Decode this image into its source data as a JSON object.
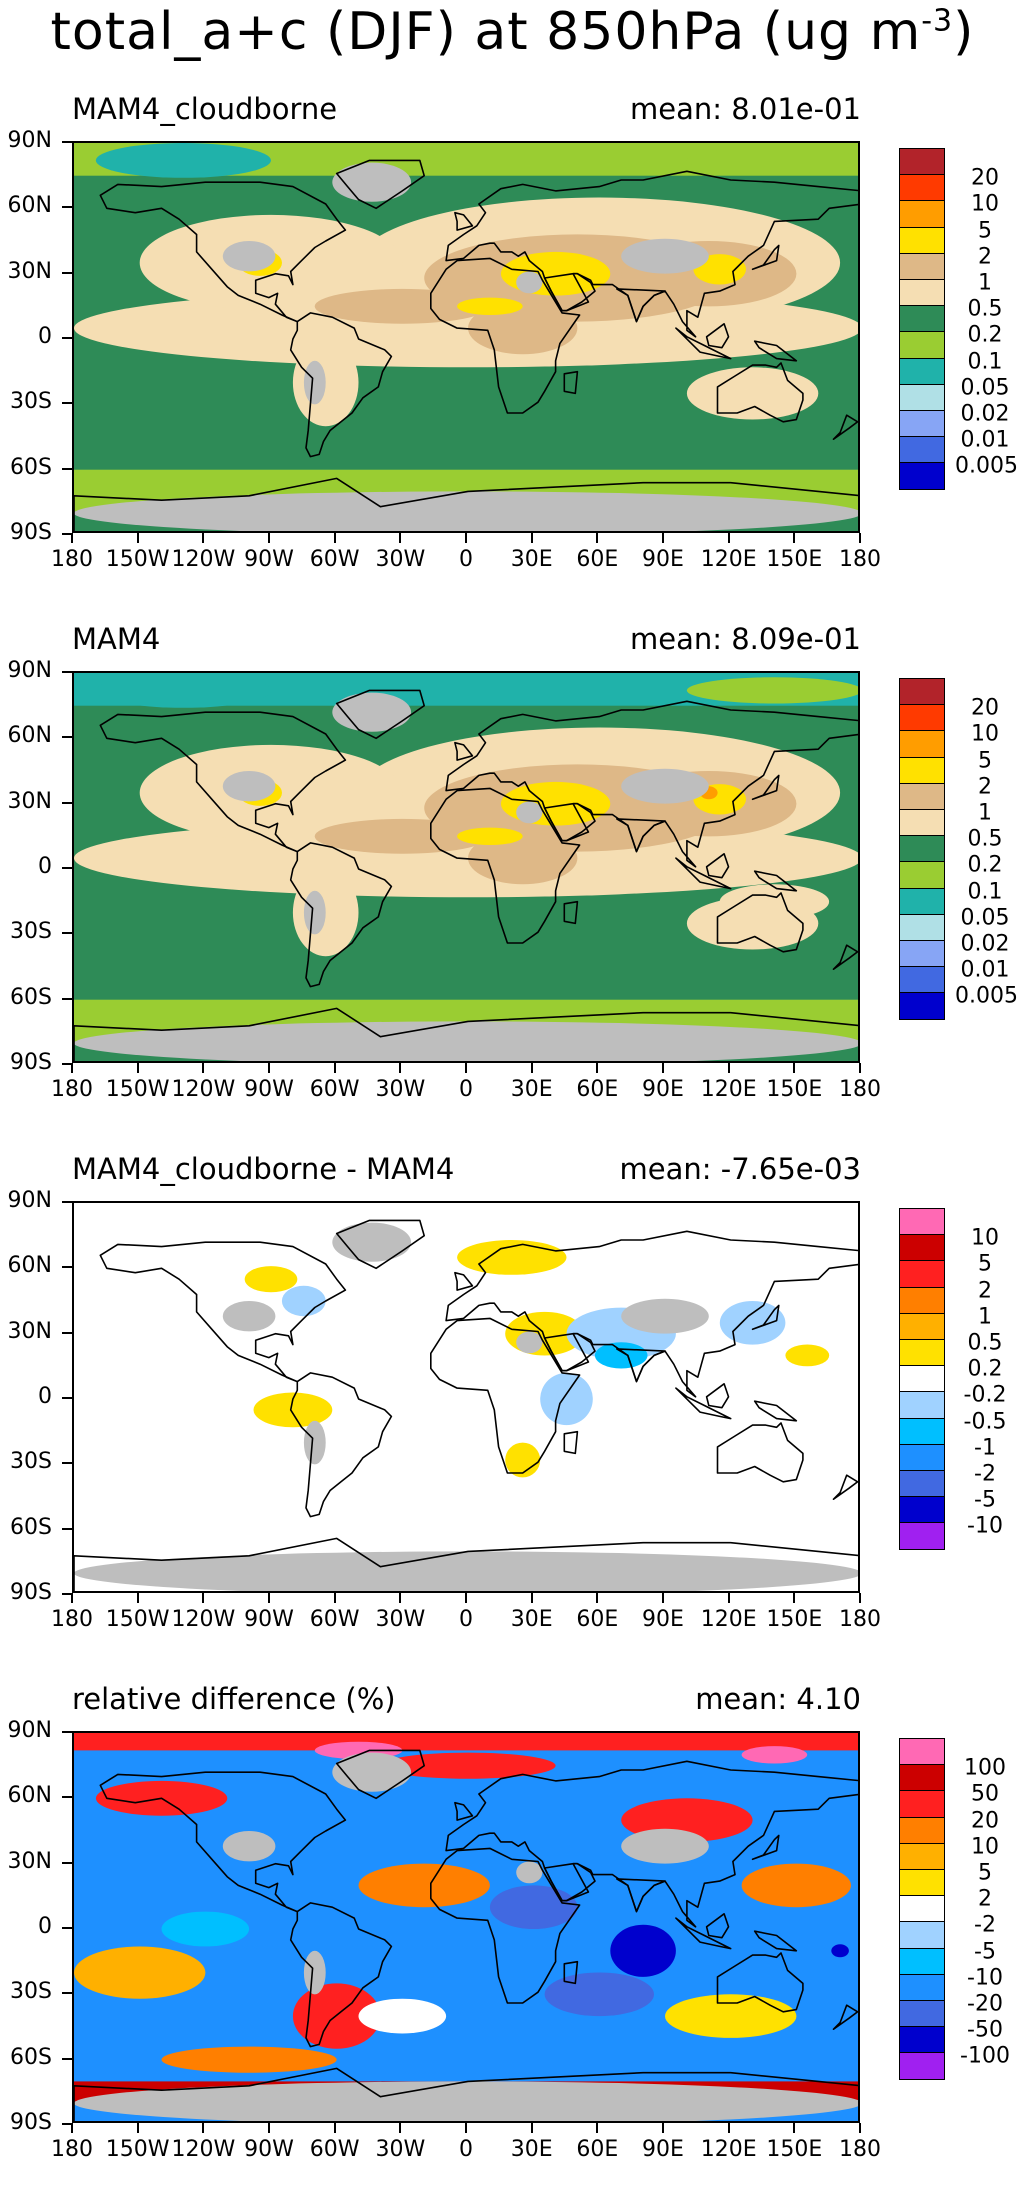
{
  "title": "total_a+c (DJF) at 850hPa (ug m",
  "title_units_exponent": "-3",
  "title_units_close": ")",
  "lat_labels": [
    "90N",
    "60N",
    "30N",
    "0",
    "30S",
    "60S",
    "90S"
  ],
  "lon_labels": [
    "180",
    "150W",
    "120W",
    "90W",
    "60W",
    "30W",
    "0",
    "30E",
    "60E",
    "90E",
    "120E",
    "150E",
    "180"
  ],
  "colors": {
    "darkred": "#b2232a",
    "red": "#ff3a00",
    "orange": "#ff9d00",
    "yellow": "#ffe100",
    "tan": "#deb887",
    "cream": "#f5deb3",
    "darkgreen": "#2e8b57",
    "lightgreen": "#9acd32",
    "teal": "#20b2aa",
    "lightcyan": "#b0e0e6",
    "periwinkle": "#87a5f5",
    "royalblue": "#4169e1",
    "blue": "#0000cd",
    "pink": "#ff69b4",
    "purple": "#a020f0",
    "gray": "#bebebe",
    "skyblue": "#00bfff"
  },
  "panels": [
    {
      "label": "MAM4_cloudborne",
      "mean": "mean: 8.01e-01",
      "colorbar_ticks": [
        "20",
        "10",
        "5",
        "2",
        "1",
        "0.5",
        "0.2",
        "0.1",
        "0.05",
        "0.02",
        "0.01",
        "0.005"
      ],
      "colorbar_colors": [
        "#b2232a",
        "#ff3a00",
        "#ff9d00",
        "#ffe100",
        "#deb887",
        "#f5deb3",
        "#2e8b57",
        "#9acd32",
        "#20b2aa",
        "#b0e0e6",
        "#87a5f5",
        "#4169e1",
        "#0000cd"
      ]
    },
    {
      "label": "MAM4",
      "mean": "mean: 8.09e-01",
      "colorbar_ticks": [
        "20",
        "10",
        "5",
        "2",
        "1",
        "0.5",
        "0.2",
        "0.1",
        "0.05",
        "0.02",
        "0.01",
        "0.005"
      ],
      "colorbar_colors": [
        "#b2232a",
        "#ff3a00",
        "#ff9d00",
        "#ffe100",
        "#deb887",
        "#f5deb3",
        "#2e8b57",
        "#9acd32",
        "#20b2aa",
        "#b0e0e6",
        "#87a5f5",
        "#4169e1",
        "#0000cd"
      ]
    },
    {
      "label": "MAM4_cloudborne - MAM4",
      "mean": "mean: -7.65e-03",
      "colorbar_ticks": [
        "10",
        "5",
        "2",
        "1",
        "0.5",
        "0.2",
        "-0.2",
        "-0.5",
        "-1",
        "-2",
        "-5",
        "-10"
      ],
      "colorbar_colors": [
        "#ff69b4",
        "#cc0000",
        "#ff2020",
        "#ff7f00",
        "#ffb000",
        "#ffe100",
        "#ffffff",
        "#a0d2ff",
        "#00bfff",
        "#1e90ff",
        "#4169e1",
        "#0000cd",
        "#a020f0"
      ]
    },
    {
      "label": "relative difference (%)",
      "mean": "mean:   4.10",
      "colorbar_ticks": [
        "100",
        "50",
        "20",
        "10",
        "5",
        "2",
        "-2",
        "-5",
        "-10",
        "-20",
        "-50",
        "-100"
      ],
      "colorbar_colors": [
        "#ff69b4",
        "#cc0000",
        "#ff2020",
        "#ff7f00",
        "#ffb000",
        "#ffe100",
        "#ffffff",
        "#a0d2ff",
        "#00bfff",
        "#1e90ff",
        "#4169e1",
        "#0000cd",
        "#a020f0"
      ]
    }
  ]
}
